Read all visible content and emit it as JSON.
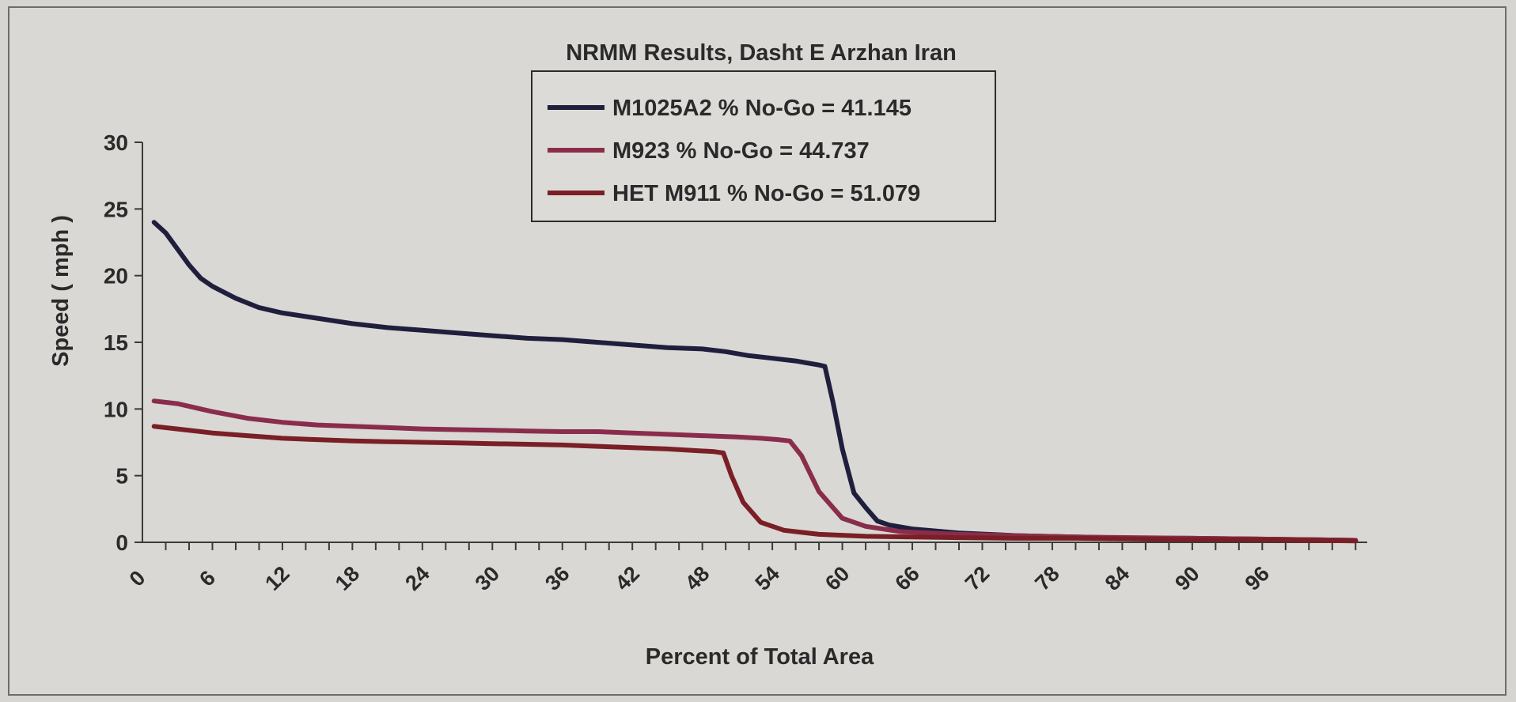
{
  "chart_data": {
    "type": "line",
    "title": "NRMM Results, Dasht E Arzhan Iran",
    "xlabel": "Percent of Total Area",
    "ylabel": "Speed ( mph )",
    "xlim": [
      0,
      105
    ],
    "ylim": [
      0,
      30
    ],
    "yticks": [
      0,
      5,
      10,
      15,
      20,
      25,
      30
    ],
    "xtick_labels": [
      "0",
      "6",
      "12",
      "18",
      "24",
      "30",
      "36",
      "42",
      "48",
      "54",
      "60",
      "66",
      "72",
      "78",
      "84",
      "90",
      "96"
    ],
    "xtick_values": [
      0,
      6,
      12,
      18,
      24,
      30,
      36,
      42,
      48,
      54,
      60,
      66,
      72,
      78,
      84,
      90,
      96
    ],
    "grid": false,
    "legend_position": "top-center",
    "series": [
      {
        "name": "M1025A2 % No-Go = 41.145",
        "color": "#1f1f3d",
        "x": [
          1,
          2,
          3,
          4,
          5,
          6,
          8,
          10,
          12,
          15,
          18,
          21,
          24,
          27,
          30,
          33,
          36,
          39,
          42,
          45,
          48,
          50,
          52,
          54,
          56,
          58,
          58.5,
          59.2,
          60,
          61,
          62,
          63,
          64,
          66,
          70,
          75,
          80,
          85,
          90,
          95,
          100,
          104
        ],
        "y": [
          24,
          23.2,
          22.0,
          20.8,
          19.8,
          19.2,
          18.3,
          17.6,
          17.2,
          16.8,
          16.4,
          16.1,
          15.9,
          15.7,
          15.5,
          15.3,
          15.2,
          15.0,
          14.8,
          14.6,
          14.5,
          14.3,
          14.0,
          13.8,
          13.6,
          13.3,
          13.2,
          10.5,
          7.0,
          3.7,
          2.6,
          1.6,
          1.3,
          1.0,
          0.7,
          0.5,
          0.4,
          0.3,
          0.3,
          0.25,
          0.2,
          0.15
        ]
      },
      {
        "name": "M923 % No-Go = 44.737",
        "color": "#8a2d4c",
        "x": [
          1,
          3,
          6,
          9,
          12,
          15,
          18,
          21,
          24,
          27,
          30,
          33,
          36,
          39,
          42,
          45,
          48,
          51,
          53,
          54.5,
          55.5,
          56.5,
          58,
          60,
          62,
          65,
          70,
          75,
          80,
          85,
          90,
          95,
          100,
          104
        ],
        "y": [
          10.6,
          10.4,
          9.8,
          9.3,
          9.0,
          8.8,
          8.7,
          8.6,
          8.5,
          8.45,
          8.4,
          8.35,
          8.3,
          8.3,
          8.2,
          8.1,
          8.0,
          7.9,
          7.8,
          7.7,
          7.6,
          6.5,
          3.8,
          1.8,
          1.2,
          0.8,
          0.6,
          0.5,
          0.4,
          0.35,
          0.3,
          0.25,
          0.2,
          0.15
        ]
      },
      {
        "name": "HET M911 % No-Go = 51.079",
        "color": "#7a1f25",
        "x": [
          1,
          3,
          6,
          9,
          12,
          15,
          18,
          21,
          24,
          27,
          30,
          33,
          36,
          39,
          42,
          45,
          47,
          49,
          49.8,
          50.5,
          51.5,
          53,
          55,
          58,
          62,
          66,
          70,
          75,
          80,
          85,
          90,
          95,
          100,
          104
        ],
        "y": [
          8.7,
          8.5,
          8.2,
          8.0,
          7.8,
          7.7,
          7.6,
          7.55,
          7.5,
          7.45,
          7.4,
          7.35,
          7.3,
          7.2,
          7.1,
          7.0,
          6.9,
          6.8,
          6.7,
          5.0,
          3.0,
          1.5,
          0.9,
          0.6,
          0.45,
          0.4,
          0.35,
          0.3,
          0.3,
          0.25,
          0.2,
          0.2,
          0.15,
          0.1
        ]
      }
    ]
  }
}
